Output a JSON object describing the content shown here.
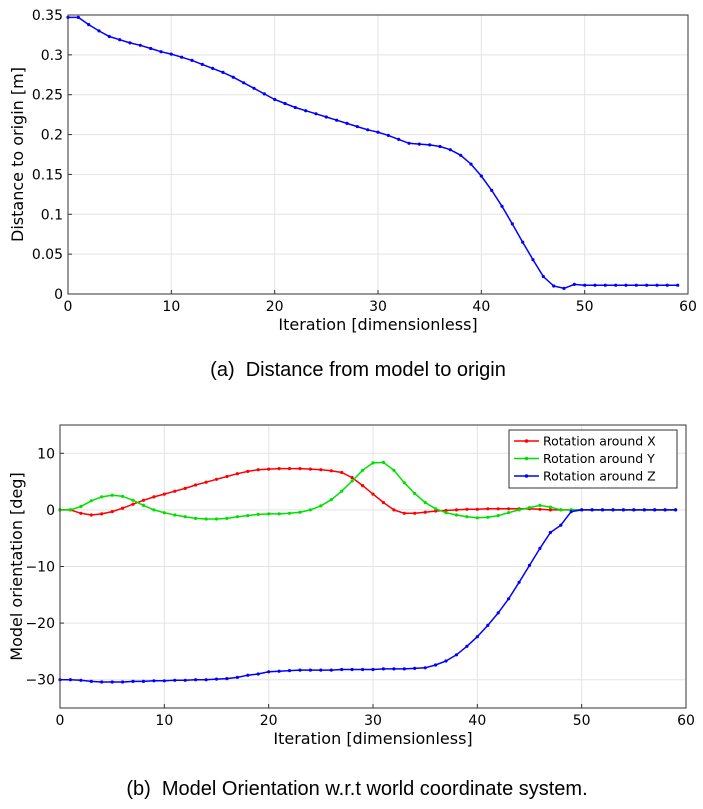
{
  "chart_data": [
    {
      "type": "line",
      "caption": "(a)  Distance from model to origin",
      "xlabel": "Iteration [dimensionless]",
      "ylabel": "Distance to origin [m]",
      "xlim": [
        0,
        60
      ],
      "ylim": [
        0,
        0.35
      ],
      "xticks": [
        0,
        10,
        20,
        30,
        40,
        50,
        60
      ],
      "yticks": [
        0,
        0.05,
        0.1,
        0.15,
        0.2,
        0.25,
        0.3,
        0.35
      ],
      "ytick_labels": [
        "0",
        "0.05",
        "0.1",
        "0.15",
        "0.2",
        "0.25",
        "0.3",
        "0.35"
      ],
      "grid": true,
      "series": [
        {
          "name": "Distance",
          "color": "#0000ff",
          "x": [
            0,
            1,
            2,
            3,
            4,
            5,
            6,
            7,
            8,
            9,
            10,
            11,
            12,
            13,
            14,
            15,
            16,
            17,
            18,
            19,
            20,
            21,
            22,
            23,
            24,
            25,
            26,
            27,
            28,
            29,
            30,
            31,
            32,
            33,
            34,
            35,
            36,
            37,
            38,
            39,
            40,
            41,
            42,
            43,
            44,
            45,
            46,
            47,
            48,
            49,
            50,
            51,
            52,
            53,
            54,
            55,
            56,
            57,
            58,
            59
          ],
          "y": [
            0.347,
            0.347,
            0.338,
            0.33,
            0.323,
            0.319,
            0.315,
            0.312,
            0.308,
            0.304,
            0.301,
            0.297,
            0.293,
            0.288,
            0.283,
            0.278,
            0.272,
            0.265,
            0.258,
            0.251,
            0.244,
            0.239,
            0.234,
            0.23,
            0.226,
            0.222,
            0.218,
            0.214,
            0.21,
            0.206,
            0.203,
            0.199,
            0.194,
            0.189,
            0.188,
            0.187,
            0.185,
            0.181,
            0.174,
            0.163,
            0.148,
            0.13,
            0.11,
            0.088,
            0.065,
            0.043,
            0.022,
            0.01,
            0.007,
            0.012,
            0.011,
            0.011,
            0.011,
            0.011,
            0.011,
            0.011,
            0.011,
            0.011,
            0.011,
            0.011
          ]
        }
      ]
    },
    {
      "type": "line",
      "caption": "(b)  Model Orientation w.r.t world coordinate system.",
      "xlabel": "Iteration [dimensionless]",
      "ylabel": "Model orientation [deg]",
      "xlim": [
        0,
        60
      ],
      "ylim": [
        -35,
        15
      ],
      "xticks": [
        0,
        10,
        20,
        30,
        40,
        50,
        60
      ],
      "yticks": [
        -30,
        -20,
        -10,
        0,
        10
      ],
      "ytick_labels": [
        "−30",
        "−20",
        "−10",
        "0",
        "10"
      ],
      "grid": true,
      "legend": "top-right",
      "series": [
        {
          "name": "Rotation around X",
          "color": "#ff0000",
          "x": [
            0,
            1,
            2,
            3,
            4,
            5,
            6,
            7,
            8,
            9,
            10,
            11,
            12,
            13,
            14,
            15,
            16,
            17,
            18,
            19,
            20,
            21,
            22,
            23,
            24,
            25,
            26,
            27,
            28,
            29,
            30,
            31,
            32,
            33,
            34,
            35,
            36,
            37,
            38,
            39,
            40,
            41,
            42,
            43,
            44,
            45,
            46,
            47,
            48,
            49,
            50,
            51,
            52,
            53,
            54,
            55,
            56,
            57,
            58,
            59
          ],
          "y": [
            0.0,
            0.0,
            -0.6,
            -0.9,
            -0.7,
            -0.3,
            0.3,
            1.0,
            1.7,
            2.3,
            2.8,
            3.3,
            3.8,
            4.4,
            4.9,
            5.4,
            5.9,
            6.4,
            6.8,
            7.1,
            7.2,
            7.3,
            7.3,
            7.3,
            7.2,
            7.1,
            6.9,
            6.6,
            5.7,
            4.3,
            2.8,
            1.3,
            0.0,
            -0.6,
            -0.6,
            -0.4,
            -0.2,
            -0.1,
            0.0,
            0.1,
            0.1,
            0.2,
            0.2,
            0.2,
            0.2,
            0.2,
            0.1,
            0.0,
            0.0,
            0.0,
            0.0,
            0.0,
            0.0,
            0.0,
            0.0,
            0.0,
            0.0,
            0.0,
            0.0,
            0.0
          ]
        },
        {
          "name": "Rotation around Y",
          "color": "#00e000",
          "x": [
            0,
            1,
            2,
            3,
            4,
            5,
            6,
            7,
            8,
            9,
            10,
            11,
            12,
            13,
            14,
            15,
            16,
            17,
            18,
            19,
            20,
            21,
            22,
            23,
            24,
            25,
            26,
            27,
            28,
            29,
            30,
            31,
            32,
            33,
            34,
            35,
            36,
            37,
            38,
            39,
            40,
            41,
            42,
            43,
            44,
            45,
            46,
            47,
            48,
            49,
            50,
            51,
            52,
            53,
            54,
            55,
            56,
            57,
            58,
            59
          ],
          "y": [
            0.0,
            0.0,
            0.6,
            1.6,
            2.3,
            2.6,
            2.4,
            1.7,
            0.8,
            0.0,
            -0.5,
            -0.9,
            -1.2,
            -1.5,
            -1.6,
            -1.6,
            -1.5,
            -1.2,
            -1.0,
            -0.8,
            -0.7,
            -0.7,
            -0.6,
            -0.4,
            0.0,
            0.7,
            1.8,
            3.3,
            5.1,
            7.0,
            8.3,
            8.4,
            7.0,
            4.8,
            2.9,
            1.3,
            0.2,
            -0.5,
            -0.9,
            -1.2,
            -1.4,
            -1.3,
            -1.0,
            -0.5,
            0.0,
            0.4,
            0.8,
            0.5,
            0.0,
            0.0,
            0.0,
            0.0,
            0.0,
            0.0,
            0.0,
            0.0,
            0.0,
            0.0,
            0.0,
            0.0
          ]
        },
        {
          "name": "Rotation around Z",
          "color": "#0000ff",
          "x": [
            0,
            1,
            2,
            3,
            4,
            5,
            6,
            7,
            8,
            9,
            10,
            11,
            12,
            13,
            14,
            15,
            16,
            17,
            18,
            19,
            20,
            21,
            22,
            23,
            24,
            25,
            26,
            27,
            28,
            29,
            30,
            31,
            32,
            33,
            34,
            35,
            36,
            37,
            38,
            39,
            40,
            41,
            42,
            43,
            44,
            45,
            46,
            47,
            48,
            49,
            50,
            51,
            52,
            53,
            54,
            55,
            56,
            57,
            58,
            59
          ],
          "y": [
            -30.0,
            -30.0,
            -30.1,
            -30.3,
            -30.4,
            -30.4,
            -30.4,
            -30.3,
            -30.3,
            -30.2,
            -30.2,
            -30.1,
            -30.1,
            -30.0,
            -30.0,
            -29.9,
            -29.8,
            -29.6,
            -29.2,
            -29.0,
            -28.6,
            -28.5,
            -28.4,
            -28.3,
            -28.3,
            -28.3,
            -28.3,
            -28.2,
            -28.2,
            -28.2,
            -28.2,
            -28.1,
            -28.1,
            -28.1,
            -28.0,
            -27.9,
            -27.4,
            -26.7,
            -25.6,
            -24.1,
            -22.4,
            -20.4,
            -18.2,
            -15.7,
            -12.8,
            -9.8,
            -6.8,
            -4.0,
            -2.7,
            -0.3,
            0.0,
            0.0,
            0.0,
            0.0,
            0.0,
            0.0,
            0.0,
            0.0,
            0.0,
            0.0
          ]
        }
      ]
    }
  ]
}
